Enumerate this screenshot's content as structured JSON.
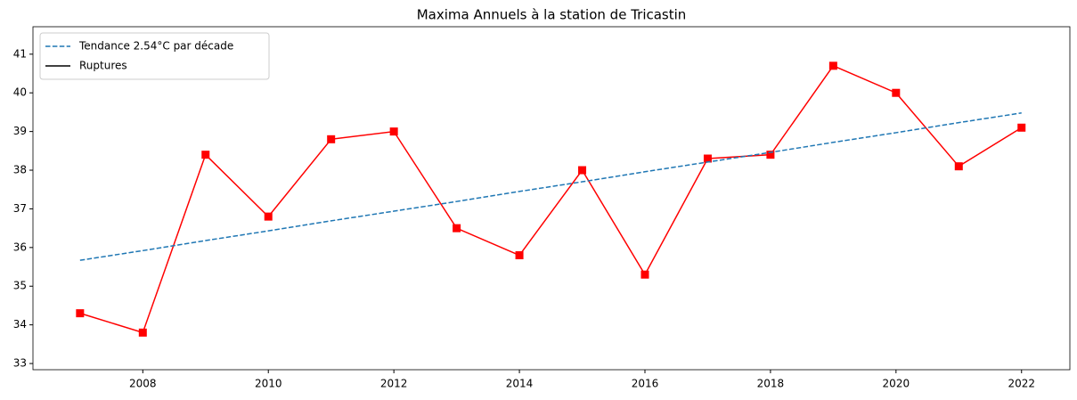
{
  "chart_data": {
    "type": "line",
    "title": "Maxima Annuels à la station de Tricastin",
    "x": [
      2007,
      2008,
      2009,
      2010,
      2011,
      2012,
      2013,
      2014,
      2015,
      2016,
      2017,
      2018,
      2019,
      2020,
      2021,
      2022
    ],
    "series": [
      {
        "color": "#ff0000",
        "marker": "square",
        "values": [
          34.3,
          33.8,
          38.4,
          36.8,
          38.8,
          39.0,
          36.5,
          35.8,
          38.0,
          35.3,
          38.3,
          38.4,
          40.7,
          40.0,
          38.1,
          39.1
        ]
      },
      {
        "name": "Tendance 2.54°C par décade",
        "color": "#1f77b4",
        "dashed": true,
        "values": [
          35.67,
          35.92,
          36.18,
          36.43,
          36.69,
          36.94,
          37.19,
          37.45,
          37.7,
          37.96,
          38.21,
          38.46,
          38.72,
          38.97,
          39.23,
          39.48
        ]
      },
      {
        "name": "Ruptures",
        "color": "#000000",
        "values": [
          null,
          null,
          null,
          null,
          null,
          null,
          null,
          null,
          null,
          null,
          null,
          null,
          null,
          null,
          null,
          null
        ]
      }
    ],
    "xlim": [
      2006.25,
      2022.77
    ],
    "xticks": [
      2008,
      2010,
      2012,
      2014,
      2016,
      2018,
      2020,
      2022
    ],
    "ylim": [
      32.84,
      41.71
    ],
    "yticks": [
      33,
      34,
      35,
      36,
      37,
      38,
      39,
      40,
      41
    ],
    "legend": "upper left"
  }
}
